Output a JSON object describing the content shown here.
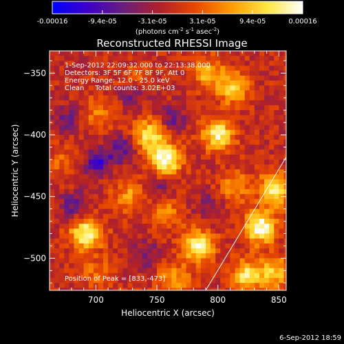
{
  "chart_data": {
    "type": "heatmap",
    "title": "Reconstructed RHESSI Image",
    "xlabel": "Heliocentric X (arcsec)",
    "ylabel": "Heliocentric Y (arcsec)",
    "xlim": [
      662,
      856
    ],
    "ylim": [
      -526,
      -332
    ],
    "x_ticks": [
      700,
      750,
      800,
      850
    ],
    "y_ticks": [
      -350,
      -400,
      -450,
      -500
    ],
    "colorbar": {
      "ticks": [
        "-0.00016",
        "-9.4e-05",
        "-3.1e-05",
        "3.1e-05",
        "9.4e-05",
        "0.00016"
      ],
      "min": -0.00016,
      "max": 0.00016,
      "units_text": "(photons cm",
      "units_exp1": "-2",
      "units_s": " s",
      "units_exp2": "-1",
      "units_asec": " asec",
      "units_exp3": "-2",
      "units_close": ")",
      "colors": [
        "#0000ff",
        "#3c00c8",
        "#6a1f7a",
        "#b0202a",
        "#e84800",
        "#ff9a00",
        "#ffe640",
        "#ffffff"
      ]
    },
    "annotations": [
      "1-Sep-2012 22:09:32.000 to 22:13:38.000",
      "Detectors: 3F 5F 6F 7F 8F 9F, Att 0",
      "Energy Range: 12.0 - 25.0 keV",
      "Clean     Total counts: 3.02E+03"
    ],
    "peak_label": "Position of Peak = [833,-473]",
    "peak": [
      833,
      -473
    ],
    "limb_line": [
      [
        790,
        -526
      ],
      [
        856,
        -418
      ]
    ],
    "sources": [
      {
        "x": 755,
        "y": -418,
        "intensity": 1.0
      },
      {
        "x": 742,
        "y": -398,
        "intensity": 0.75
      },
      {
        "x": 798,
        "y": -398,
        "intensity": 0.85
      },
      {
        "x": 810,
        "y": -360,
        "intensity": 0.65
      },
      {
        "x": 790,
        "y": -348,
        "intensity": 0.55
      },
      {
        "x": 690,
        "y": -478,
        "intensity": 0.9
      },
      {
        "x": 782,
        "y": -488,
        "intensity": 0.85
      },
      {
        "x": 833,
        "y": -473,
        "intensity": 1.0
      },
      {
        "x": 845,
        "y": -442,
        "intensity": 0.85
      },
      {
        "x": 822,
        "y": -512,
        "intensity": 0.75
      },
      {
        "x": 845,
        "y": -510,
        "intensity": 0.6
      },
      {
        "x": 700,
        "y": -380,
        "intensity": 0.35
      },
      {
        "x": 725,
        "y": -448,
        "intensity": 0.45
      },
      {
        "x": 755,
        "y": -462,
        "intensity": 0.4
      },
      {
        "x": 762,
        "y": -515,
        "intensity": 0.5
      },
      {
        "x": 700,
        "y": -510,
        "intensity": 0.3
      },
      {
        "x": 672,
        "y": -420,
        "intensity": 0.25
      },
      {
        "x": 812,
        "y": -440,
        "intensity": 0.45
      },
      {
        "x": 730,
        "y": -355,
        "intensity": 0.3
      }
    ],
    "negative_regions": [
      {
        "x": 700,
        "y": -420,
        "intensity": 0.8
      },
      {
        "x": 720,
        "y": -410,
        "intensity": 0.6
      },
      {
        "x": 680,
        "y": -455,
        "intensity": 0.55
      },
      {
        "x": 760,
        "y": -385,
        "intensity": 0.5
      },
      {
        "x": 728,
        "y": -365,
        "intensity": 0.55
      },
      {
        "x": 675,
        "y": -385,
        "intensity": 0.45
      },
      {
        "x": 790,
        "y": -455,
        "intensity": 0.4
      },
      {
        "x": 740,
        "y": -495,
        "intensity": 0.45
      },
      {
        "x": 750,
        "y": -440,
        "intensity": 0.4
      }
    ]
  },
  "footer": {
    "timestamp": "6-Sep-2012 18:59"
  }
}
